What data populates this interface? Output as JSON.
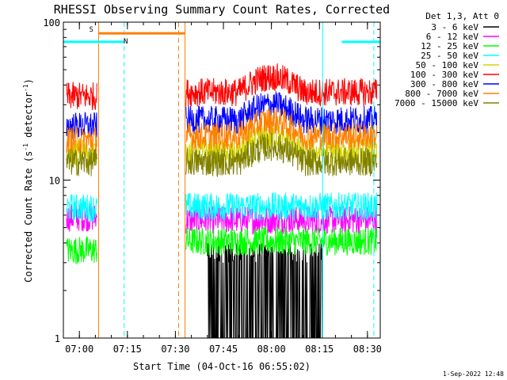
{
  "chart_data": {
    "type": "line",
    "title": "RHESSI Observing Summary Count Rates, Corrected",
    "xlabel": "Start Time (04-Oct-16 06:55:02)",
    "ylabel_main": "Corrected Count Rate (s",
    "ylabel_sup1": "-1",
    "ylabel_mid": " detector",
    "ylabel_sup2": "-1",
    "ylabel_end": ")",
    "yscale": "log",
    "ylim": [
      1,
      100
    ],
    "ytick_labels": [
      "100",
      "10",
      "1"
    ],
    "ytick_values": [
      100,
      10,
      1
    ],
    "xlim_minutes": [
      0,
      99
    ],
    "xtick_labels": [
      "07:00",
      "07:15",
      "07:30",
      "07:45",
      "08:00",
      "08:15",
      "08:30"
    ],
    "xtick_minutes": [
      5,
      20,
      35,
      50,
      65,
      80,
      95
    ],
    "legend_title": "Det 1,3, Att 0",
    "legend_position": "top-right outside",
    "data_gap_minutes": [
      11,
      38
    ],
    "series": [
      {
        "name": "3 - 6 keV",
        "color": "#000000",
        "before_gap": null,
        "after_gap": 1.7,
        "active_window": [
          45,
          81
        ]
      },
      {
        "name": "6 - 12 keV",
        "color": "#ff00ff",
        "before_gap": 5.8,
        "after_gap": 5.6
      },
      {
        "name": "12 - 25 keV",
        "color": "#00ff00",
        "before_gap": 3.6,
        "after_gap": 4.1
      },
      {
        "name": "25 - 50 keV",
        "color": "#00ffff",
        "before_gap": 6.7,
        "after_gap": 6.8
      },
      {
        "name": "50 - 100 keV",
        "color": "#d4d400",
        "before_gap": 15,
        "after_gap": 15
      },
      {
        "name": "100 - 300 keV",
        "color": "#ff0000",
        "before_gap": 34,
        "after_gap": 36
      },
      {
        "name": "300 - 800 keV",
        "color": "#0000ff",
        "before_gap": 22,
        "after_gap": 24
      },
      {
        "name": "800 - 7000 keV",
        "color": "#ff7f00",
        "before_gap": 18,
        "after_gap": 19
      },
      {
        "name": "7000 - 15000 keV",
        "color": "#808000",
        "before_gap": 13,
        "after_gap": 13
      }
    ],
    "flags": [
      {
        "label": "S",
        "color": "#ff7f00",
        "start_minute": 11,
        "end_minute": 38,
        "level": 85
      },
      {
        "label": "N",
        "color": "#00ffff",
        "start_minute": 0,
        "end_minute": 19,
        "level": 75
      },
      {
        "label": "",
        "color": "#00ffff",
        "start_minute": 87,
        "end_minute": 99,
        "level": 75
      }
    ],
    "vertical_markers": [
      {
        "minute": 0,
        "color": "#00ffff",
        "style": "solid"
      },
      {
        "minute": 11,
        "color": "#ff7f00",
        "style": "solid"
      },
      {
        "minute": 19,
        "color": "#00ffff",
        "style": "dashed"
      },
      {
        "minute": 36,
        "color": "#ff7f00",
        "style": "dashed"
      },
      {
        "minute": 38,
        "color": "#ff7f00",
        "style": "solid"
      },
      {
        "minute": 81,
        "color": "#00ffff",
        "style": "solid"
      },
      {
        "minute": 97,
        "color": "#00ffff",
        "style": "dashed"
      }
    ],
    "grid": false
  },
  "footer": {
    "timestamp": "1-Sep-2022 12:48"
  }
}
